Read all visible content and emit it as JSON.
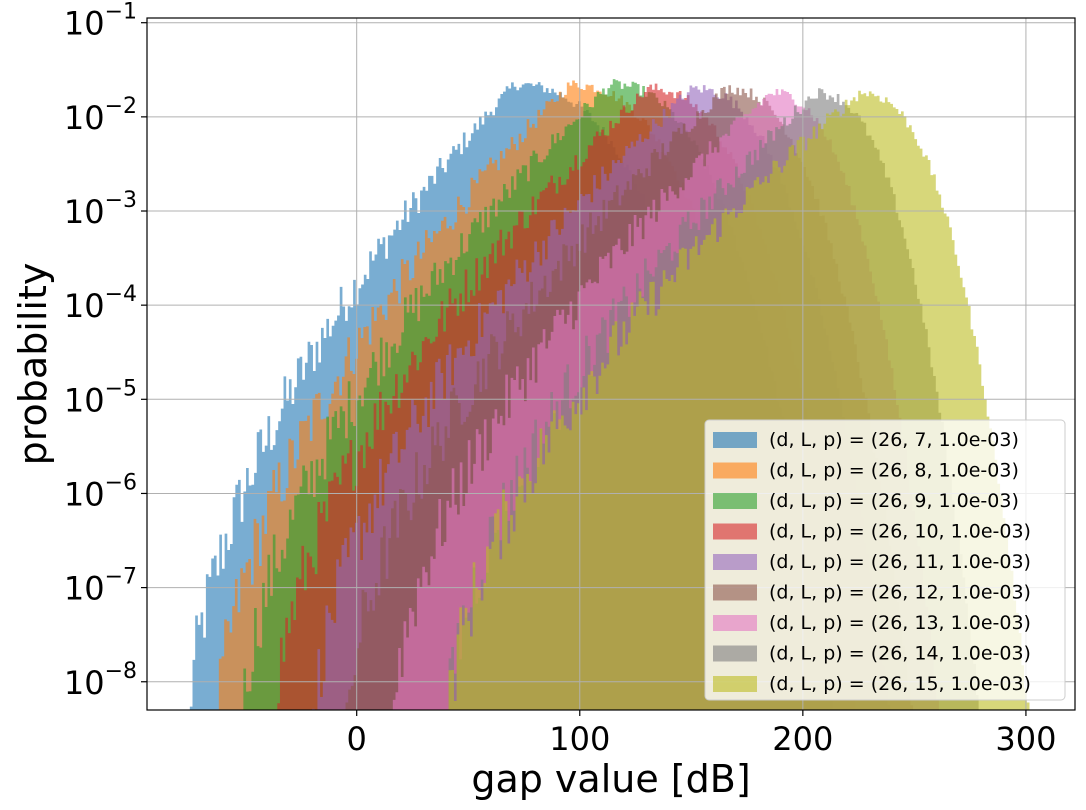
{
  "chart_data": {
    "type": "histogram",
    "xlabel": "gap value [dB]",
    "ylabel": "probability",
    "y_scale": "log",
    "xlim": [
      -94,
      322
    ],
    "ylim_exponent": [
      -8.3,
      -0.95
    ],
    "x_ticks": [
      0,
      100,
      200,
      300
    ],
    "y_tick_base": "10",
    "y_tick_exponents": [
      "−8",
      "−7",
      "−6",
      "−5",
      "−4",
      "−3",
      "−2",
      "−1"
    ],
    "grid": true,
    "legend_position": "lower right",
    "series": [
      {
        "name": "(d, L, p) = (26, 7, 1.0e-03)",
        "color": "#1f77b4",
        "x_min": -76,
        "peak_x": 70,
        "x_max": 190,
        "peak_prob": 0.022
      },
      {
        "name": "(d, L, p) = (26, 8, 1.0e-03)",
        "color": "#ff7f0e",
        "x_min": -63,
        "peak_x": 95,
        "x_max": 205,
        "peak_prob": 0.022
      },
      {
        "name": "(d, L, p) = (26, 9, 1.0e-03)",
        "color": "#2ca02c",
        "x_min": -52,
        "peak_x": 113,
        "x_max": 215,
        "peak_prob": 0.022
      },
      {
        "name": "(d, L, p) = (26, 10, 1.0e-03)",
        "color": "#d62728",
        "x_min": -38,
        "peak_x": 130,
        "x_max": 225,
        "peak_prob": 0.02
      },
      {
        "name": "(d, L, p) = (26, 11, 1.0e-03)",
        "color": "#9467bd",
        "x_min": -20,
        "peak_x": 150,
        "x_max": 240,
        "peak_prob": 0.02
      },
      {
        "name": "(d, L, p) = (26, 12, 1.0e-03)",
        "color": "#8c564b",
        "x_min": -5,
        "peak_x": 165,
        "x_max": 250,
        "peak_prob": 0.02
      },
      {
        "name": "(d, L, p) = (26, 13, 1.0e-03)",
        "color": "#e377c2",
        "x_min": 15,
        "peak_x": 185,
        "x_max": 262,
        "peak_prob": 0.018
      },
      {
        "name": "(d, L, p) = (26, 14, 1.0e-03)",
        "color": "#7f7f7f",
        "x_min": 40,
        "peak_x": 205,
        "x_max": 280,
        "peak_prob": 0.018
      },
      {
        "name": "(d, L, p) = (26, 15, 1.0e-03)",
        "color": "#bcbd22",
        "x_min": 40,
        "peak_x": 225,
        "x_max": 302,
        "peak_prob": 0.018
      }
    ]
  }
}
